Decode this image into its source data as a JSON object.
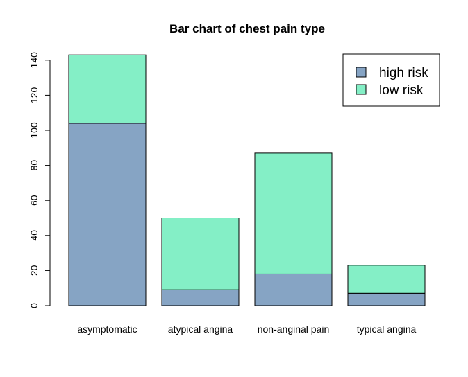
{
  "chart_data": {
    "type": "bar",
    "stacked": true,
    "title": "Bar chart of chest pain type",
    "xlabel": "",
    "ylabel": "",
    "ylim": [
      0,
      144
    ],
    "yticks": [
      0,
      20,
      40,
      60,
      80,
      100,
      120,
      140
    ],
    "categories": [
      "asymptomatic",
      "atypical angina",
      "non-anginal pain",
      "typical angina"
    ],
    "series": [
      {
        "name": "high risk",
        "values": [
          104,
          9,
          18,
          7
        ],
        "color": "#86A4C4"
      },
      {
        "name": "low risk",
        "values": [
          39,
          41,
          69,
          16
        ],
        "color": "#84EFC6"
      }
    ],
    "legend": {
      "position": "top-right",
      "entries": [
        "high risk",
        "low risk"
      ]
    },
    "grid": false
  }
}
